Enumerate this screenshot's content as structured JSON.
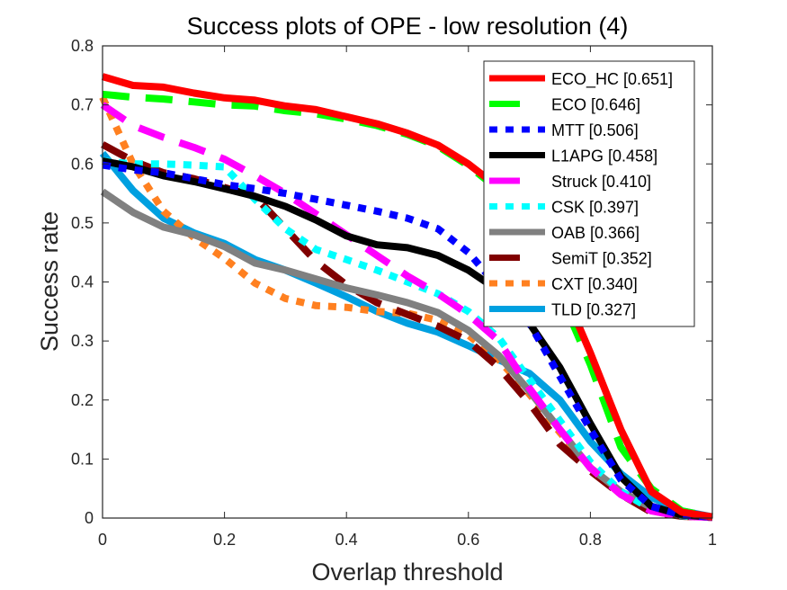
{
  "chart_data": {
    "type": "line",
    "title": "Success plots of OPE - low resolution (4)",
    "xlabel": "Overlap threshold",
    "ylabel": "Success rate",
    "xlim": [
      0,
      1
    ],
    "ylim": [
      0,
      0.8
    ],
    "xticks": [
      0,
      0.2,
      0.4,
      0.6,
      0.8,
      1
    ],
    "xtick_labels": [
      "0",
      "0.2",
      "0.4",
      "0.6",
      "0.8",
      "1"
    ],
    "yticks": [
      0,
      0.1,
      0.2,
      0.3,
      0.4,
      0.5,
      0.6,
      0.7,
      0.8
    ],
    "ytick_labels": [
      "0",
      "0.1",
      "0.2",
      "0.3",
      "0.4",
      "0.5",
      "0.6",
      "0.7",
      "0.8"
    ],
    "grid": false,
    "legend_position": "top-right",
    "x": [
      0,
      0.05,
      0.1,
      0.15,
      0.2,
      0.25,
      0.3,
      0.35,
      0.4,
      0.45,
      0.5,
      0.55,
      0.6,
      0.65,
      0.7,
      0.75,
      0.8,
      0.85,
      0.9,
      0.95,
      1
    ],
    "series": [
      {
        "name": "ECO_HC",
        "legend": "ECO_HC [0.651]",
        "auc": 0.651,
        "color": "#ff0000",
        "style": "solid",
        "values": [
          0.748,
          0.733,
          0.73,
          0.72,
          0.712,
          0.708,
          0.698,
          0.692,
          0.68,
          0.668,
          0.652,
          0.632,
          0.6,
          0.56,
          0.48,
          0.4,
          0.28,
          0.15,
          0.045,
          0.01,
          0.002
        ]
      },
      {
        "name": "ECO",
        "legend": "ECO [0.646]",
        "auc": 0.646,
        "color": "#00ff00",
        "style": "dashed",
        "values": [
          0.718,
          0.713,
          0.71,
          0.705,
          0.7,
          0.698,
          0.69,
          0.685,
          0.676,
          0.665,
          0.65,
          0.63,
          0.597,
          0.556,
          0.474,
          0.38,
          0.26,
          0.12,
          0.05,
          0.012,
          0.002
        ]
      },
      {
        "name": "MTT",
        "legend": "MTT [0.506]",
        "auc": 0.506,
        "color": "#0000ff",
        "style": "dotted",
        "values": [
          0.598,
          0.59,
          0.585,
          0.575,
          0.565,
          0.558,
          0.55,
          0.54,
          0.53,
          0.52,
          0.508,
          0.49,
          0.45,
          0.39,
          0.33,
          0.24,
          0.15,
          0.065,
          0.02,
          0.005,
          0.002
        ]
      },
      {
        "name": "L1APG",
        "legend": "L1APG [0.458]",
        "auc": 0.458,
        "color": "#000000",
        "style": "solid",
        "values": [
          0.605,
          0.595,
          0.58,
          0.57,
          0.558,
          0.545,
          0.528,
          0.505,
          0.478,
          0.463,
          0.458,
          0.445,
          0.42,
          0.385,
          0.33,
          0.255,
          0.16,
          0.07,
          0.02,
          0.005,
          0.002
        ]
      },
      {
        "name": "Struck",
        "legend": "Struck [0.410]",
        "auc": 0.41,
        "color": "#ff00ff",
        "style": "dashed",
        "values": [
          0.7,
          0.665,
          0.645,
          0.628,
          0.608,
          0.58,
          0.55,
          0.515,
          0.48,
          0.445,
          0.41,
          0.38,
          0.345,
          0.3,
          0.22,
          0.15,
          0.085,
          0.04,
          0.012,
          0.003,
          0.001
        ]
      },
      {
        "name": "CSK",
        "legend": "CSK [0.397]",
        "auc": 0.397,
        "color": "#00ffff",
        "style": "dotted",
        "values": [
          0.605,
          0.6,
          0.6,
          0.598,
          0.595,
          0.54,
          0.49,
          0.455,
          0.438,
          0.42,
          0.4,
          0.38,
          0.35,
          0.305,
          0.235,
          0.165,
          0.095,
          0.045,
          0.015,
          0.004,
          0.001
        ]
      },
      {
        "name": "OAB",
        "legend": "OAB [0.366]",
        "auc": 0.366,
        "color": "#808080",
        "style": "solid",
        "values": [
          0.553,
          0.518,
          0.493,
          0.48,
          0.46,
          0.432,
          0.42,
          0.405,
          0.39,
          0.378,
          0.365,
          0.348,
          0.318,
          0.275,
          0.215,
          0.15,
          0.085,
          0.045,
          0.018,
          0.005,
          0.001
        ]
      },
      {
        "name": "SemiT",
        "legend": "SemiT [0.352]",
        "auc": 0.352,
        "color": "#800000",
        "style": "dashed",
        "values": [
          0.633,
          0.605,
          0.585,
          0.575,
          0.56,
          0.545,
          0.49,
          0.435,
          0.395,
          0.365,
          0.345,
          0.325,
          0.3,
          0.255,
          0.195,
          0.125,
          0.08,
          0.04,
          0.01,
          0.003,
          0.001
        ]
      },
      {
        "name": "CXT",
        "legend": "CXT [0.340]",
        "auc": 0.34,
        "color": "#ff8020",
        "style": "dotted",
        "values": [
          0.713,
          0.6,
          0.52,
          0.475,
          0.44,
          0.398,
          0.372,
          0.36,
          0.357,
          0.35,
          0.347,
          0.335,
          0.31,
          0.268,
          0.21,
          0.145,
          0.085,
          0.04,
          0.012,
          0.003,
          0.001
        ]
      },
      {
        "name": "TLD",
        "legend": "TLD [0.327]",
        "auc": 0.327,
        "color": "#00a0e0",
        "style": "solid",
        "values": [
          0.618,
          0.555,
          0.508,
          0.483,
          0.465,
          0.438,
          0.42,
          0.398,
          0.375,
          0.35,
          0.33,
          0.315,
          0.292,
          0.268,
          0.245,
          0.2,
          0.13,
          0.075,
          0.035,
          0.012,
          0.002
        ]
      }
    ]
  }
}
